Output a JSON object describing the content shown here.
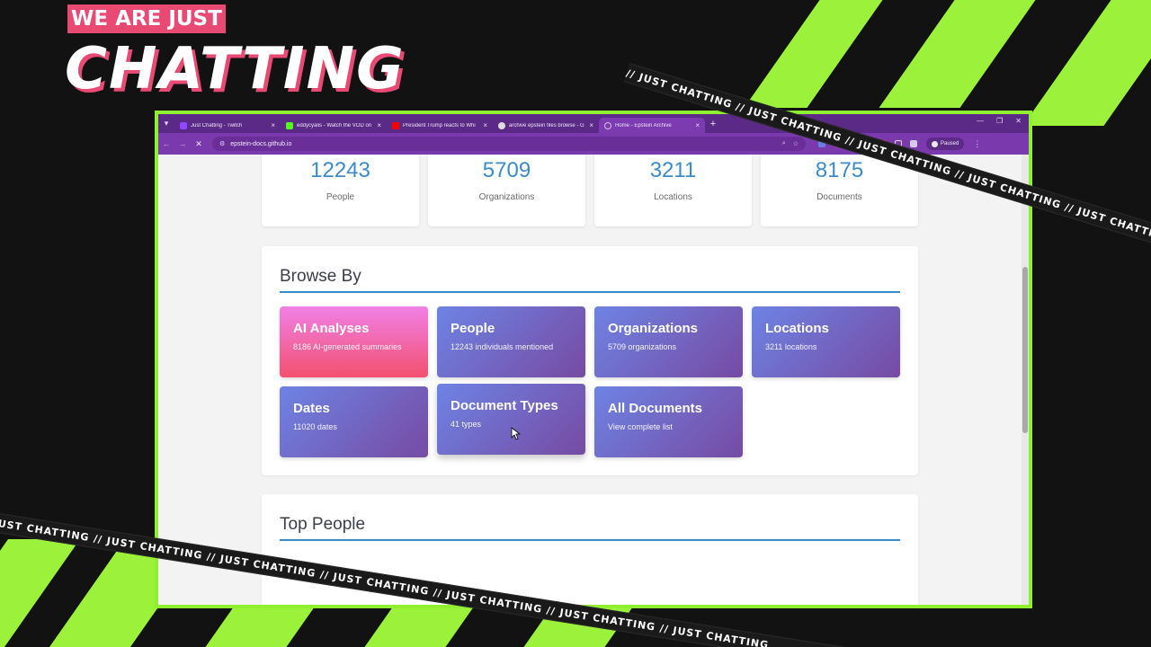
{
  "overlay": {
    "badge": "WE ARE JUST",
    "title": "CHATTING",
    "tape_text": "// JUST CHATTING // JUST CHATTING // JUST CHATTING // JUST CHATTING // JUST CHATTING // JUST CHATTING // JUST CHATTING"
  },
  "browser": {
    "tabs": [
      {
        "title": "Just Chatting - Twitch",
        "fav_color": "#9146ff"
      },
      {
        "title": "eddycyalis - Watch the VOD on",
        "fav_color": "#53fc18"
      },
      {
        "title": "President Trump reacts to Whi",
        "fav_color": "#ff0000"
      },
      {
        "title": "archive epstein files browse - G",
        "fav_color": "#dddddd"
      },
      {
        "title": "Home - Epstein Archive",
        "fav_color": "#d6c2ee"
      }
    ],
    "url": "epstein-docs.github.io",
    "paused_label": "Paused"
  },
  "stats": [
    {
      "value": "12243",
      "label": "People"
    },
    {
      "value": "5709",
      "label": "Organizations"
    },
    {
      "value": "3211",
      "label": "Locations"
    },
    {
      "value": "8175",
      "label": "Documents"
    }
  ],
  "browse": {
    "title": "Browse By",
    "cards": [
      {
        "title": "AI Analyses",
        "subtitle": "8186 AI-generated summaries"
      },
      {
        "title": "People",
        "subtitle": "12243 individuals mentioned"
      },
      {
        "title": "Organizations",
        "subtitle": "5709 organizations"
      },
      {
        "title": "Locations",
        "subtitle": "3211 locations"
      },
      {
        "title": "Dates",
        "subtitle": "11020 dates"
      },
      {
        "title": "Document Types",
        "subtitle": "41 types"
      },
      {
        "title": "All Documents",
        "subtitle": "View complete list"
      }
    ]
  },
  "top_people": {
    "title": "Top People"
  }
}
